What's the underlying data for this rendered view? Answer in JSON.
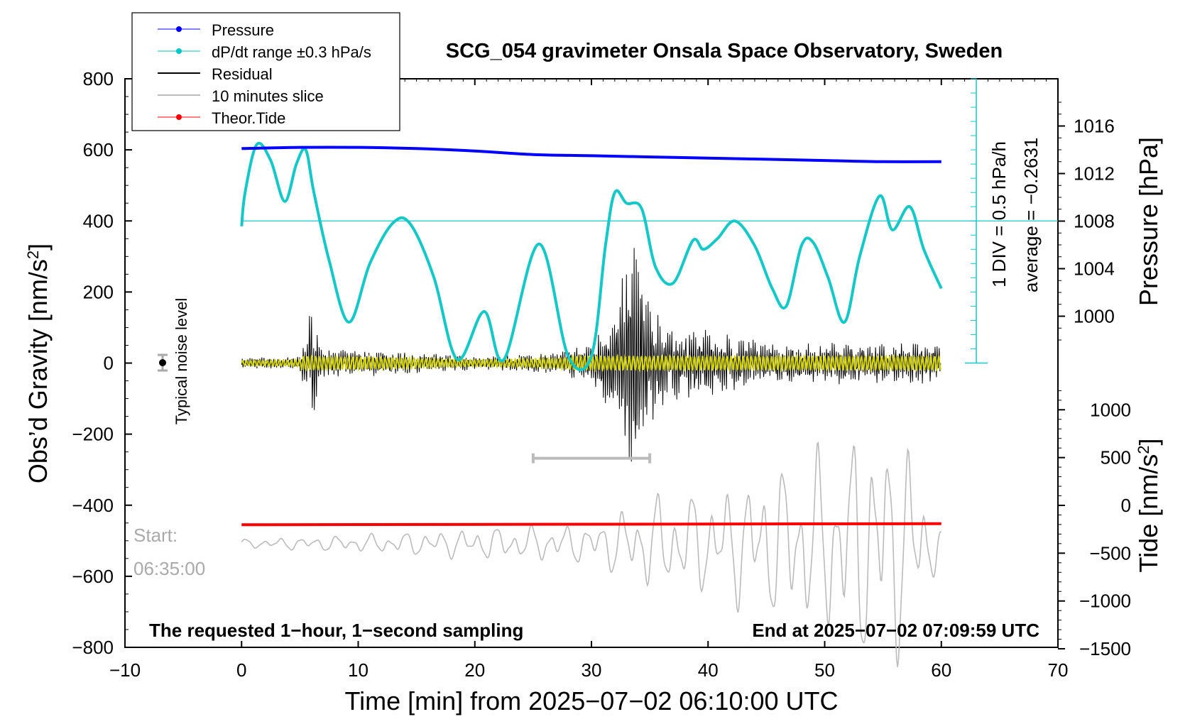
{
  "chart_data": {
    "type": "line",
    "title": "SCG_054 gravimeter Onsala Space Observatory, Sweden",
    "xlabel": "Time [min] from 2025−07−02 06:10:00 UTC",
    "ylabel_left": "Obs’d Gravity [nm/s",
    "ylabel_left_sup": "2",
    "ylabel_left_end": "]",
    "ylabel_pressure": "Pressure [hPa]",
    "ylabel_tide": "Tide [nm/s",
    "ylabel_tide_sup": "2",
    "ylabel_tide_end": "]",
    "xlim": [
      -10,
      70
    ],
    "ylim": [
      -800,
      800
    ],
    "x_ticks": [
      "−10",
      "0",
      "10",
      "20",
      "30",
      "40",
      "50",
      "60",
      "70"
    ],
    "y_ticks": [
      "−800",
      "−600",
      "−400",
      "−200",
      "0",
      "200",
      "400",
      "600",
      "800"
    ],
    "pressure_axis": {
      "ticks": [
        "1000",
        "1004",
        "1008",
        "1012",
        "1016"
      ],
      "values": [
        1000,
        1004,
        1008,
        1012,
        1016
      ]
    },
    "tide_axis": {
      "ticks": [
        "−1500",
        "−1000",
        "−500",
        "0",
        "500",
        "1000"
      ],
      "values": [
        -1500,
        -1000,
        -500,
        0,
        500,
        1000
      ]
    },
    "grid": false,
    "legend_position": "top-left",
    "legend": [
      {
        "label": "Pressure",
        "color": "#0000ff",
        "marker": true
      },
      {
        "label": "dP/dt range ±0.3 hPa/s",
        "color": "#00c8c8",
        "marker": true
      },
      {
        "label": "Residual",
        "color": "#000000",
        "marker": false
      },
      {
        "label": "10 minutes slice",
        "color": "#bbbbbb",
        "marker": false
      },
      {
        "label": "Theor.Tide",
        "color": "#ff0000",
        "marker": true
      }
    ],
    "colors": {
      "pressure": "#0000ff",
      "dpdt": "#14c8c8",
      "residual": "#000000",
      "residual_filtered": "#d4d400",
      "slice": "#bbbbbb",
      "tide": "#ff0000"
    },
    "series": [
      {
        "name": "Pressure",
        "units": "hPa",
        "x": [
          0,
          5,
          10,
          15,
          20,
          25,
          30,
          35,
          40,
          45,
          50,
          55,
          60
        ],
        "values": [
          1014.1,
          1014.2,
          1014.2,
          1014.1,
          1013.9,
          1013.6,
          1013.5,
          1013.4,
          1013.3,
          1013.2,
          1013.1,
          1013.0,
          1013.0
        ]
      },
      {
        "name": "dP/dt range ±0.3 hPa/s",
        "units": "nm/s2 (plotted)",
        "x": [
          0,
          0.3,
          1.3,
          2.5,
          3.7,
          4.7,
          5.5,
          6.2,
          7.5,
          9.2,
          11,
          13,
          14.5,
          16.5,
          18.5,
          20.8,
          22.5,
          25.5,
          28,
          30,
          31.2,
          32,
          33,
          34.3,
          35.5,
          37,
          38.7,
          39.6,
          40.8,
          42.3,
          44,
          45.5,
          46.7,
          48,
          49,
          50.3,
          51.7,
          53,
          54.7,
          55.8,
          57.3,
          58.5,
          60
        ],
        "values": [
          385,
          480,
          615,
          570,
          455,
          560,
          600,
          480,
          290,
          115,
          280,
          395,
          390,
          240,
          10,
          145,
          10,
          335,
          20,
          20,
          330,
          480,
          450,
          435,
          270,
          225,
          345,
          320,
          350,
          400,
          330,
          210,
          160,
          330,
          340,
          240,
          115,
          300,
          470,
          375,
          440,
          320,
          210
        ]
      },
      {
        "name": "Residual",
        "units": "nm/s2",
        "x": [
          0,
          5,
          6,
          7,
          10,
          20,
          27,
          30,
          32,
          33,
          34,
          35,
          36,
          38,
          40,
          45,
          50,
          55,
          60
        ],
        "envelope": [
          15,
          20,
          170,
          40,
          40,
          20,
          30,
          60,
          160,
          300,
          360,
          200,
          130,
          100,
          100,
          60,
          60,
          60,
          60
        ]
      },
      {
        "name": "10 minutes slice",
        "units": "nm/s2 (tide axis)",
        "x": [
          0,
          10,
          20,
          30,
          35,
          40,
          45,
          50,
          52,
          54,
          55,
          57,
          60
        ],
        "envelope": [
          50,
          100,
          180,
          230,
          550,
          600,
          850,
          1100,
          1250,
          1400,
          1500,
          1250,
          200
        ]
      },
      {
        "name": "Theor.Tide",
        "units": "nm/s2",
        "x": [
          0,
          60
        ],
        "values": [
          -455,
          -452
        ]
      }
    ],
    "noise_level": {
      "label": "Typical noise level",
      "x": -7,
      "value": 0,
      "error": 20
    },
    "slice_bar": {
      "x_start": 25,
      "x_end": 35,
      "value": -268
    },
    "start_label": [
      "Start:",
      "06:35:00"
    ],
    "annotations": {
      "div": "1 DIV = 0.5 hPa/h",
      "average": "average = −0.2631",
      "footer_left": "The requested 1−hour, 1−second sampling",
      "footer_right": "End at 2025−07−02 07:09:59 UTC"
    }
  }
}
